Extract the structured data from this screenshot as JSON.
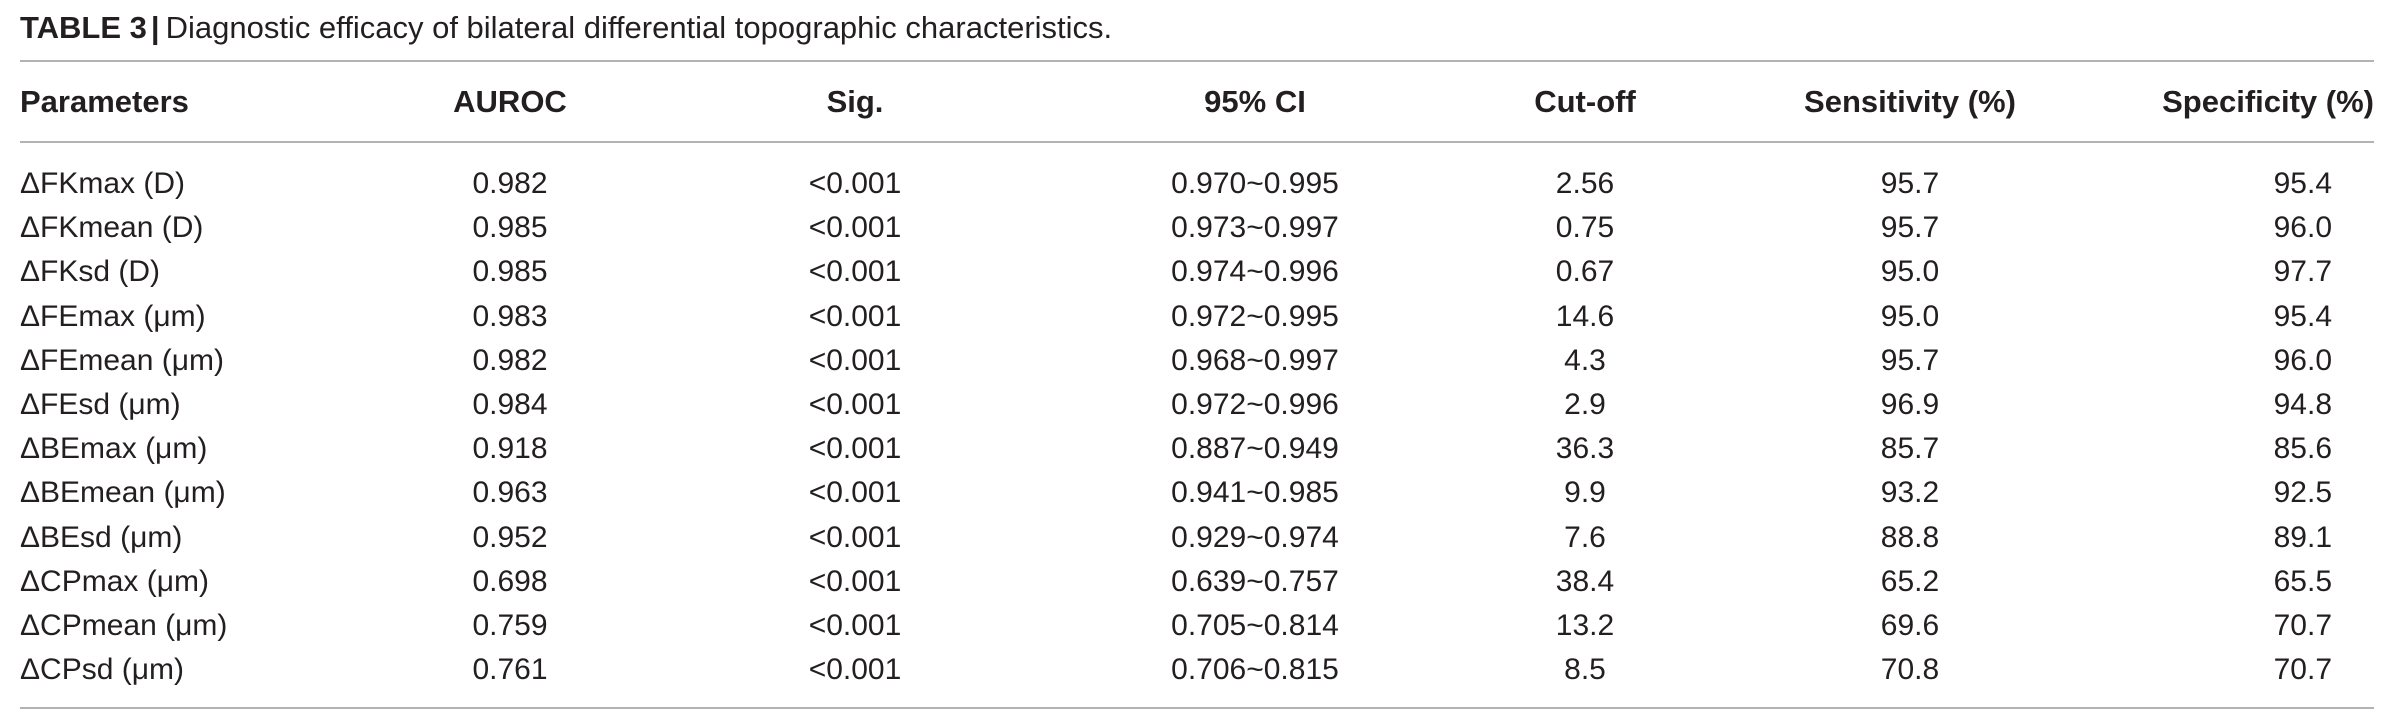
{
  "caption": {
    "label": "TABLE 3",
    "separator": "|",
    "text": "Diagnostic efficacy of bilateral differential topographic characteristics."
  },
  "table": {
    "headers": [
      "Parameters",
      "AUROC",
      "Sig.",
      "95% CI",
      "Cut-off",
      "Sensitivity (%)",
      "Specificity (%)"
    ],
    "rows": [
      [
        "ΔFKmax (D)",
        "0.982",
        "<0.001",
        "0.970~0.995",
        "2.56",
        "95.7",
        "95.4"
      ],
      [
        "ΔFKmean (D)",
        "0.985",
        "<0.001",
        "0.973~0.997",
        "0.75",
        "95.7",
        "96.0"
      ],
      [
        "ΔFKsd (D)",
        "0.985",
        "<0.001",
        "0.974~0.996",
        "0.67",
        "95.0",
        "97.7"
      ],
      [
        "ΔFEmax (μm)",
        "0.983",
        "<0.001",
        "0.972~0.995",
        "14.6",
        "95.0",
        "95.4"
      ],
      [
        "ΔFEmean (μm)",
        "0.982",
        "<0.001",
        "0.968~0.997",
        "4.3",
        "95.7",
        "96.0"
      ],
      [
        "ΔFEsd (μm)",
        "0.984",
        "<0.001",
        "0.972~0.996",
        "2.9",
        "96.9",
        "94.8"
      ],
      [
        "ΔBEmax (μm)",
        "0.918",
        "<0.001",
        "0.887~0.949",
        "36.3",
        "85.7",
        "85.6"
      ],
      [
        "ΔBEmean (μm)",
        "0.963",
        "<0.001",
        "0.941~0.985",
        "9.9",
        "93.2",
        "92.5"
      ],
      [
        "ΔBEsd (μm)",
        "0.952",
        "<0.001",
        "0.929~0.974",
        "7.6",
        "88.8",
        "89.1"
      ],
      [
        "ΔCPmax (μm)",
        "0.698",
        "<0.001",
        "0.639~0.757",
        "38.4",
        "65.2",
        "65.5"
      ],
      [
        "ΔCPmean (μm)",
        "0.759",
        "<0.001",
        "0.705~0.814",
        "13.2",
        "69.6",
        "70.7"
      ],
      [
        "ΔCPsd (μm)",
        "0.761",
        "<0.001",
        "0.706~0.815",
        "8.5",
        "70.8",
        "70.7"
      ]
    ]
  }
}
